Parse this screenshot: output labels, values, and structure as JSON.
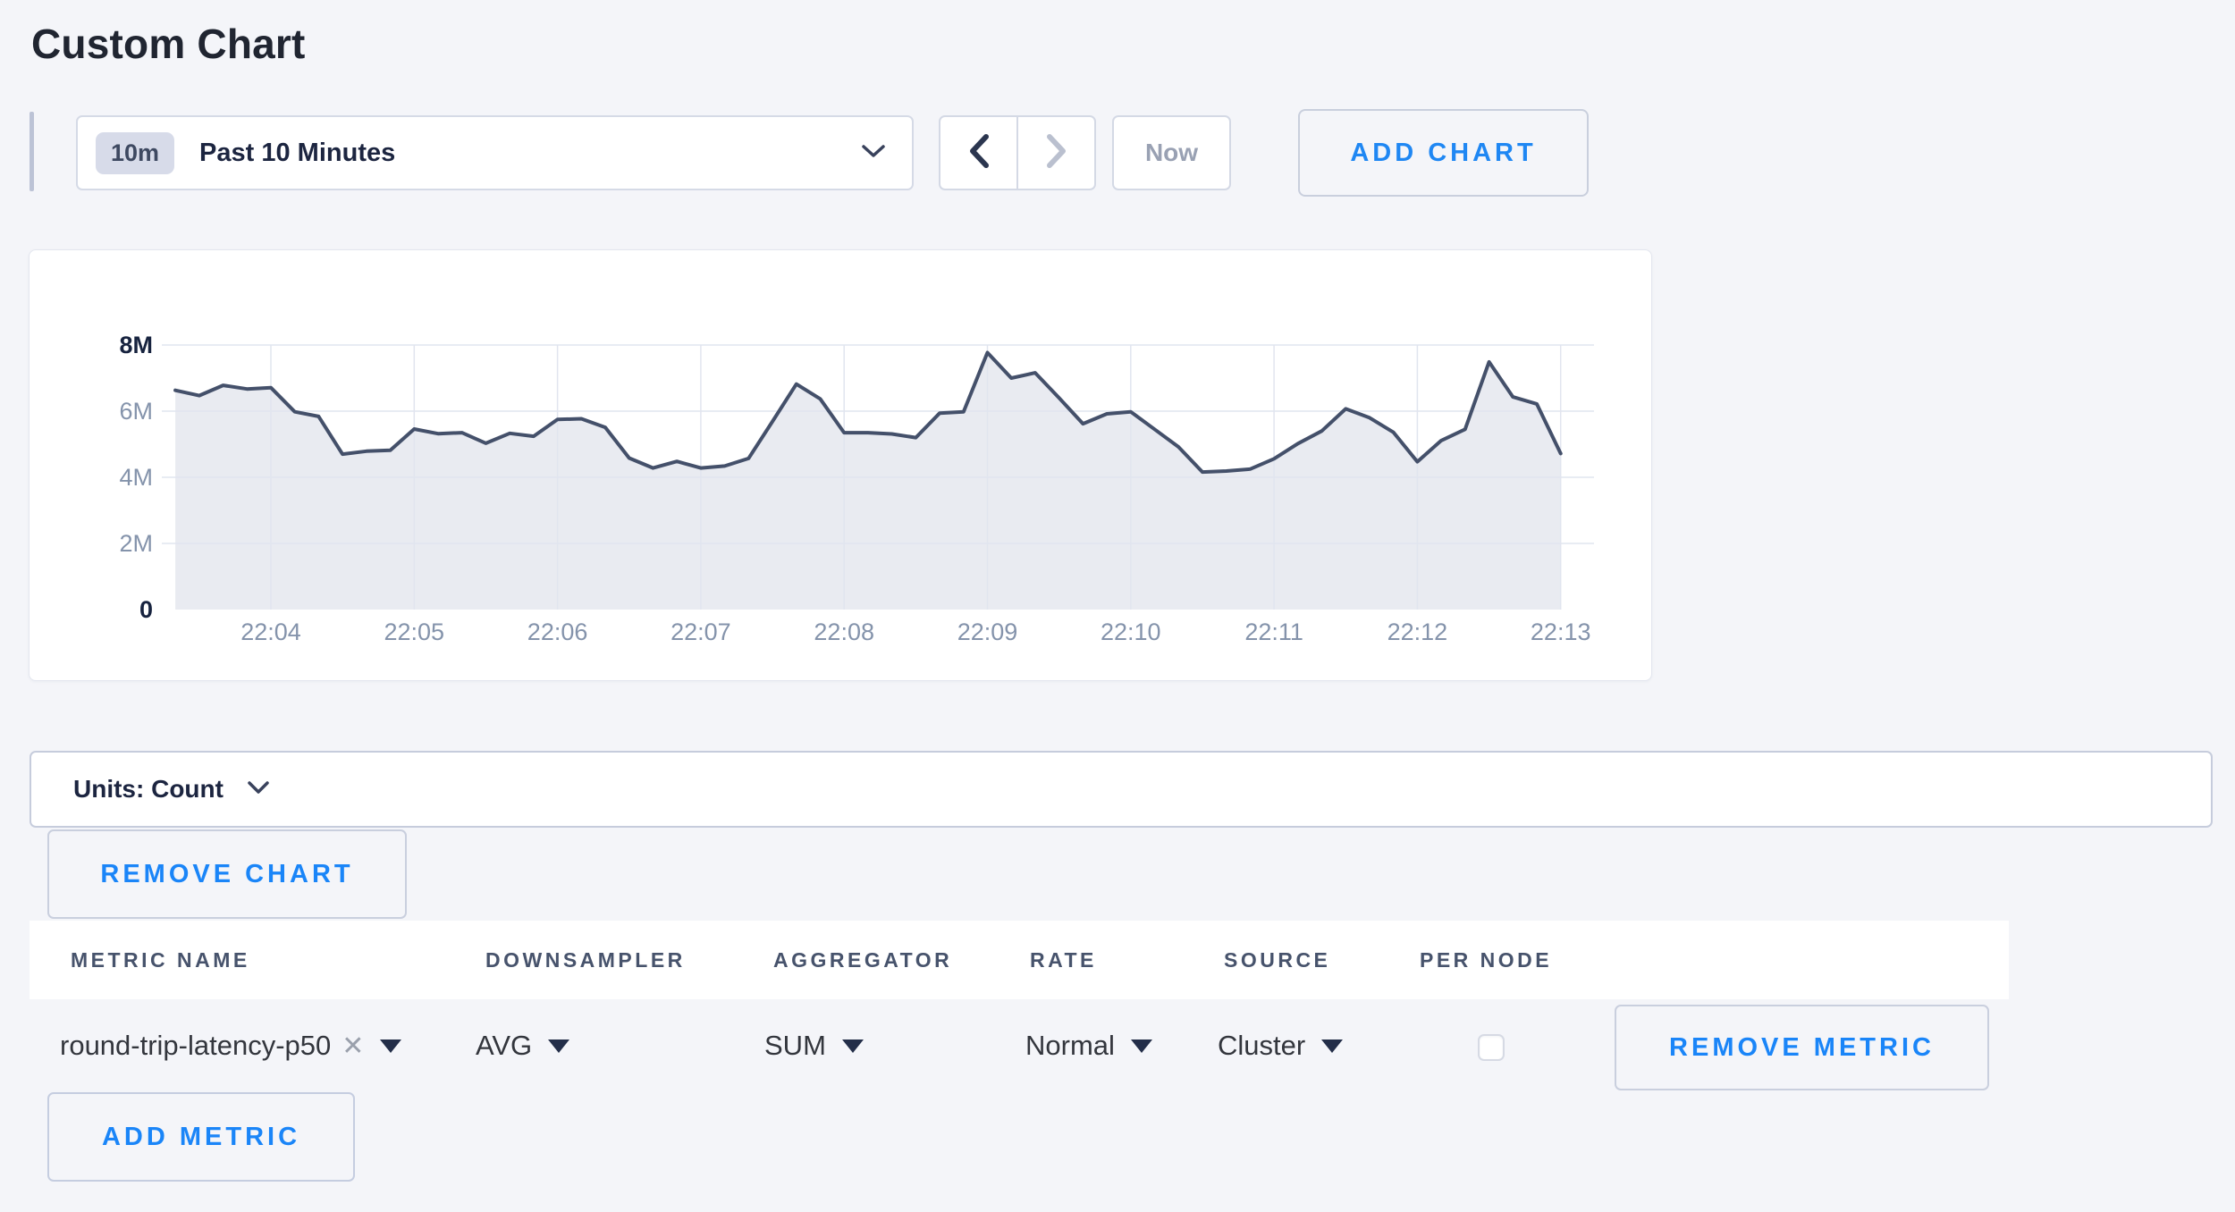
{
  "page": {
    "title": "Custom Chart",
    "background": "#f4f5f9",
    "accent_blue": "#1f87f3"
  },
  "toolbar": {
    "range_badge": "10m",
    "range_label": "Past 10 Minutes",
    "prev_icon": "chevron-left",
    "next_icon": "chevron-right",
    "now_label": "Now",
    "add_chart_label": "ADD CHART"
  },
  "chart_data": {
    "type": "area",
    "title": "",
    "unit": "Count",
    "start_time": "22:03:20",
    "sample_interval_seconds": 10,
    "x_ticks": [
      "22:04",
      "22:05",
      "22:06",
      "22:07",
      "22:08",
      "22:09",
      "22:10",
      "22:11",
      "22:12",
      "22:13"
    ],
    "y_ticks": [
      {
        "label": "0",
        "value": 0,
        "strong": true
      },
      {
        "label": "2M",
        "value": 2,
        "strong": false
      },
      {
        "label": "4M",
        "value": 4,
        "strong": false
      },
      {
        "label": "6M",
        "value": 6,
        "strong": false
      },
      {
        "label": "8M",
        "value": 8,
        "strong": true
      }
    ],
    "ylim_millions": [
      0,
      8
    ],
    "grid": true,
    "legend": "none",
    "series": [
      {
        "name": "round-trip-latency-p50",
        "values_millions": [
          6.63,
          6.47,
          6.78,
          6.67,
          6.71,
          5.98,
          5.84,
          4.7,
          4.79,
          4.82,
          5.46,
          5.32,
          5.35,
          5.03,
          5.33,
          5.24,
          5.75,
          5.77,
          5.51,
          4.58,
          4.28,
          4.48,
          4.28,
          4.34,
          4.57,
          5.69,
          6.82,
          6.37,
          5.35,
          5.35,
          5.31,
          5.2,
          5.94,
          5.98,
          7.77,
          7.0,
          7.16,
          6.4,
          5.62,
          5.92,
          5.98,
          5.45,
          4.92,
          4.16,
          4.19,
          4.25,
          4.56,
          5.02,
          5.4,
          6.07,
          5.8,
          5.36,
          4.47,
          5.11,
          5.45,
          7.49,
          6.43,
          6.22,
          4.72
        ]
      }
    ],
    "line_color": "#44506a",
    "fill_color": "#e9ebf1",
    "grid_color": "#e1e5ef",
    "label_color": "#8493ab",
    "label_strong_color": "#17233f"
  },
  "units_bar": {
    "label": "Units: Count"
  },
  "chart_actions": {
    "remove_chart_label": "REMOVE CHART"
  },
  "metrics_table": {
    "headers": [
      "METRIC NAME",
      "DOWNSAMPLER",
      "AGGREGATOR",
      "RATE",
      "SOURCE",
      "PER NODE"
    ],
    "add_metric_label": "ADD METRIC",
    "rows": [
      {
        "metric_name": "round-trip-latency-p50",
        "remove_tag_icon": "x",
        "downsampler": "AVG",
        "aggregator": "SUM",
        "rate": "Normal",
        "source": "Cluster",
        "per_node_checked": false,
        "remove_label": "REMOVE METRIC"
      }
    ]
  }
}
